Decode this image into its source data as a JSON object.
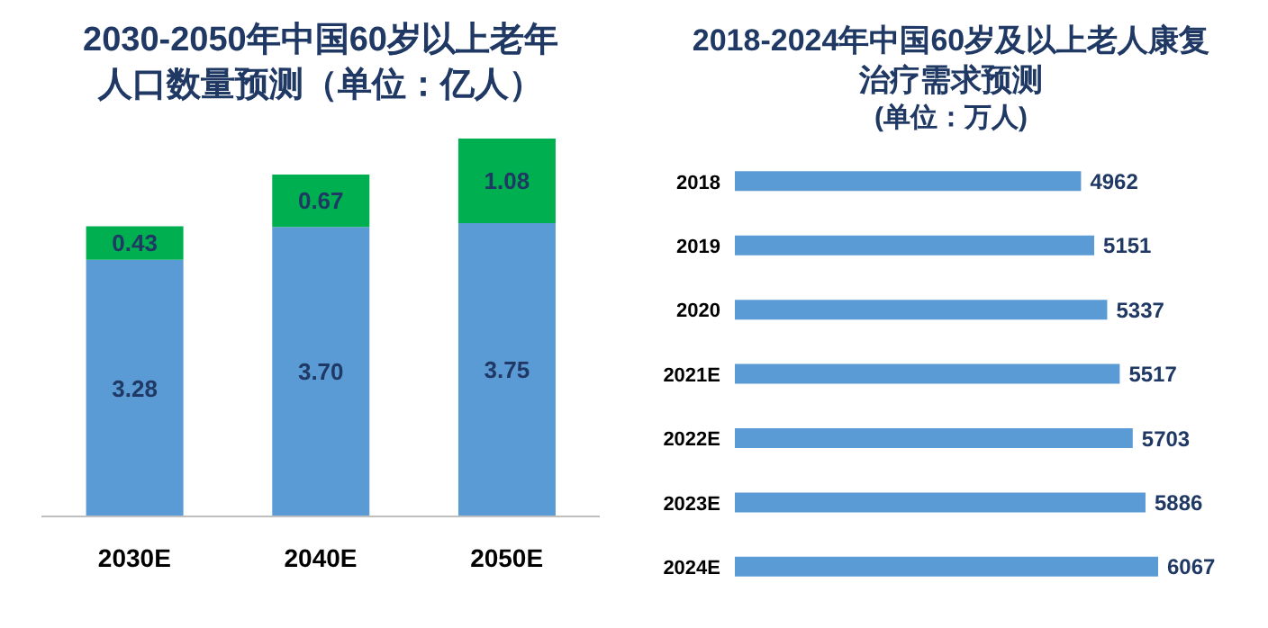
{
  "chart_data": [
    {
      "type": "bar",
      "title": "2030-2050年中国60岁以上老年人口数量预测（单位：亿人）",
      "categories": [
        "2030E",
        "2040E",
        "2050E"
      ],
      "stacked": true,
      "series": [
        {
          "color": "#5b9bd5",
          "values": [
            3.28,
            3.7,
            3.75
          ],
          "value_labels": [
            "3.28",
            "3.70",
            "3.75"
          ]
        },
        {
          "color": "#00b050",
          "values": [
            0.43,
            0.67,
            1.08
          ],
          "value_labels": [
            "0.43",
            "0.67",
            "1.08"
          ]
        }
      ]
    },
    {
      "type": "bar",
      "orientation": "horizontal",
      "title": "2018-2024年中国60岁及以上老人康复治疗需求预测",
      "subtitle": "(单位：万人)",
      "categories": [
        "2018",
        "2019",
        "2020",
        "2021E",
        "2022E",
        "2023E",
        "2024E"
      ],
      "values": [
        4962,
        5151,
        5337,
        5517,
        5703,
        5886,
        6067
      ],
      "color": "#5b9bd5",
      "data_labels": true
    }
  ]
}
